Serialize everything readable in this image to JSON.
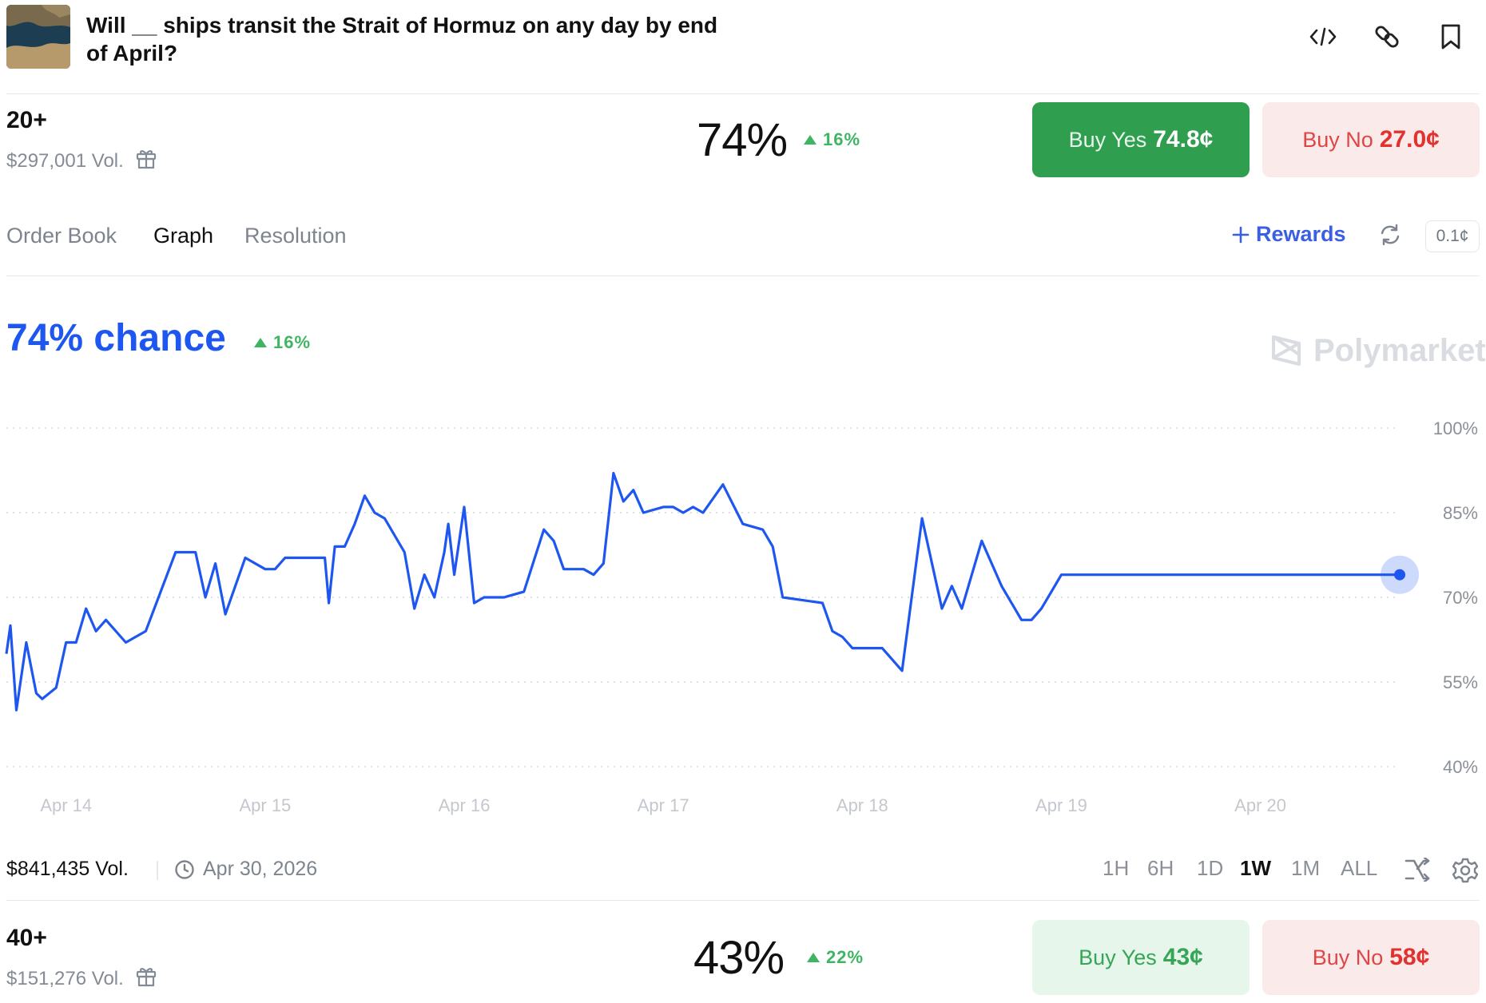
{
  "header": {
    "title": "Will __ ships transit the Strait of Hormuz on any day by end of April?",
    "icons": [
      "embed-code-icon",
      "link-icon",
      "bookmark-icon"
    ]
  },
  "market1": {
    "name": "20+",
    "volume": "$297,001 Vol.",
    "percent": "74%",
    "change": "16%",
    "buy_yes_label": "Buy Yes",
    "buy_yes_price": "74.8¢",
    "buy_no_label": "Buy No",
    "buy_no_price": "27.0¢"
  },
  "tabs": [
    "Order Book",
    "Graph",
    "Resolution"
  ],
  "active_tab": "Graph",
  "rewards_label": "Rewards",
  "tick_size": "0.1¢",
  "graph": {
    "chance": "74% chance",
    "change": "16%",
    "brand": "Polymarket",
    "volume": "$841,435 Vol.",
    "end_date": "Apr 30, 2026",
    "ranges": [
      "1H",
      "6H",
      "1D",
      "1W",
      "1M",
      "ALL"
    ],
    "active_range": "1W",
    "line_color": "#1e56f0"
  },
  "chart_data": {
    "type": "line",
    "ylim": [
      40,
      100
    ],
    "yticks": [
      "100%",
      "85%",
      "70%",
      "55%",
      "40%"
    ],
    "xticks": [
      "Apr 14",
      "Apr 15",
      "Apr 16",
      "Apr 17",
      "Apr 18",
      "Apr 19",
      "Apr 20"
    ],
    "x": [
      13.7,
      13.72,
      13.75,
      13.8,
      13.85,
      13.88,
      13.95,
      14.0,
      14.05,
      14.1,
      14.15,
      14.2,
      14.3,
      14.4,
      14.55,
      14.65,
      14.7,
      14.75,
      14.8,
      14.9,
      15.0,
      15.05,
      15.1,
      15.2,
      15.3,
      15.32,
      15.35,
      15.4,
      15.45,
      15.5,
      15.55,
      15.6,
      15.7,
      15.75,
      15.8,
      15.85,
      15.9,
      15.92,
      15.95,
      16.0,
      16.05,
      16.1,
      16.2,
      16.3,
      16.4,
      16.45,
      16.5,
      16.55,
      16.6,
      16.65,
      16.7,
      16.75,
      16.8,
      16.85,
      16.9,
      17.0,
      17.05,
      17.1,
      17.15,
      17.2,
      17.3,
      17.4,
      17.5,
      17.55,
      17.6,
      17.8,
      17.85,
      17.9,
      17.95,
      18.0,
      18.05,
      18.1,
      18.2,
      18.3,
      18.4,
      18.45,
      18.5,
      18.6,
      18.7,
      18.8,
      18.85,
      18.9,
      18.95,
      19.0,
      19.05,
      19.15,
      19.25,
      19.35,
      19.45,
      19.55,
      19.65,
      19.75,
      19.8,
      19.85,
      19.9,
      19.95,
      20.0,
      20.05,
      20.1,
      20.15,
      20.2,
      20.25,
      20.3,
      20.35,
      20.45,
      20.55,
      20.6,
      20.65,
      20.7
    ],
    "y": [
      60,
      65,
      50,
      62,
      53,
      52,
      54,
      62,
      62,
      68,
      64,
      66,
      62,
      64,
      78,
      78,
      70,
      76,
      67,
      77,
      75,
      75,
      77,
      77,
      77,
      69,
      79,
      79,
      83,
      88,
      85,
      84,
      78,
      68,
      74,
      70,
      78,
      83,
      74,
      86,
      69,
      70,
      70,
      71,
      82,
      80,
      75,
      75,
      75,
      74,
      76,
      92,
      87,
      89,
      85,
      86,
      86,
      85,
      86,
      85,
      90,
      83,
      82,
      79,
      70,
      69,
      64,
      63,
      61,
      61,
      61,
      61,
      57,
      84,
      68,
      72,
      68,
      80,
      72,
      66,
      66,
      68,
      71,
      74,
      74,
      74,
      74,
      74,
      74,
      74,
      74,
      74,
      74,
      74,
      74,
      74,
      74,
      74,
      74,
      74,
      74,
      74,
      74,
      74,
      74,
      74,
      74,
      74,
      74
    ]
  }
}
